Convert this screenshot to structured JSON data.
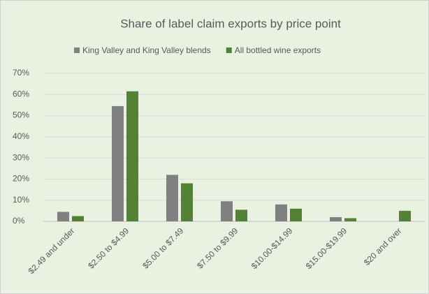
{
  "chart_data": {
    "type": "bar",
    "title": "Share of label claim exports by price point",
    "categories": [
      "$2.49 and under",
      "$2.50 to $4.99",
      "$5.00 to $7.49",
      "$7.50 to $9.99",
      "$10.00-$14.99",
      "$15.00-$19.99",
      "$20 and over"
    ],
    "series": [
      {
        "name": "King Valley and King Valley blends",
        "color": "#808080",
        "values": [
          4.5,
          54.5,
          22,
          9.5,
          8,
          2,
          0
        ]
      },
      {
        "name": "All bottled wine exports",
        "color": "#548235",
        "values": [
          2.5,
          61.5,
          18,
          5.5,
          6,
          1.5,
          5
        ]
      }
    ],
    "ylim": [
      0,
      70
    ],
    "yticks": [
      {
        "value": 0,
        "label": "0%"
      },
      {
        "value": 10,
        "label": "10%"
      },
      {
        "value": 20,
        "label": "20%"
      },
      {
        "value": 30,
        "label": "30%"
      },
      {
        "value": 40,
        "label": "40%"
      },
      {
        "value": 50,
        "label": "50%"
      },
      {
        "value": 60,
        "label": "60%"
      },
      {
        "value": 70,
        "label": "70%"
      }
    ],
    "grid": true,
    "legend": "top"
  }
}
